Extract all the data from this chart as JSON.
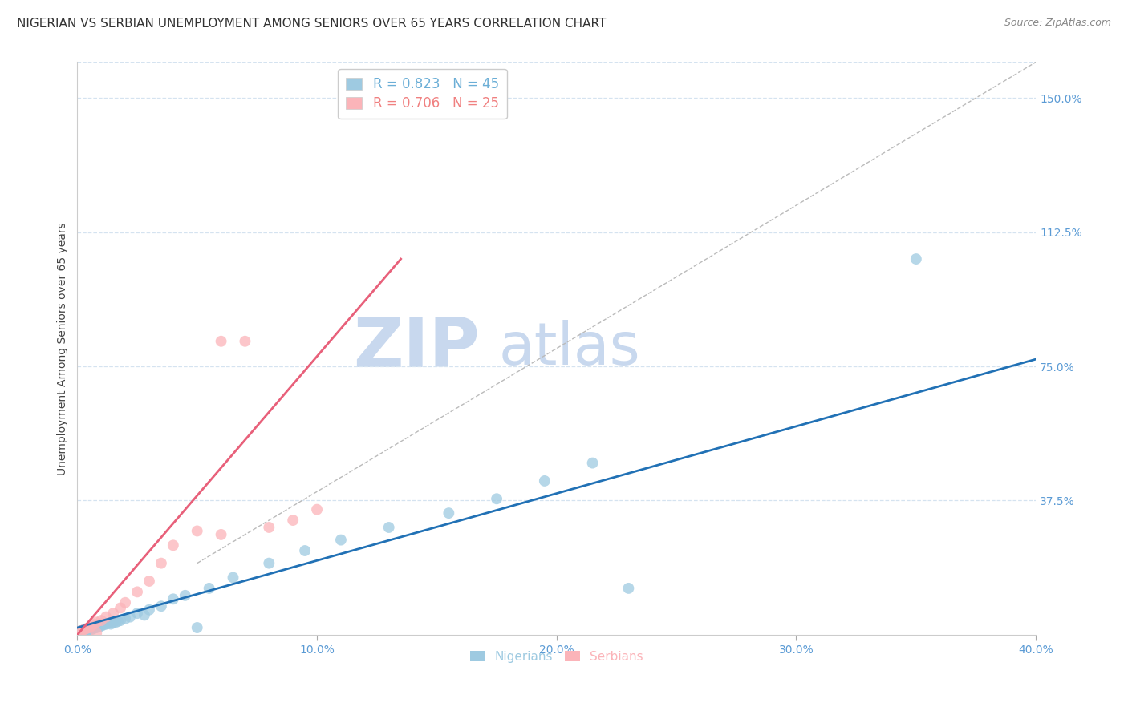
{
  "title": "NIGERIAN VS SERBIAN UNEMPLOYMENT AMONG SENIORS OVER 65 YEARS CORRELATION CHART",
  "source": "Source: ZipAtlas.com",
  "ylabel": "Unemployment Among Seniors over 65 years",
  "xlim": [
    0.0,
    0.4
  ],
  "ylim": [
    0.0,
    1.6
  ],
  "xticks": [
    0.0,
    0.1,
    0.2,
    0.3,
    0.4
  ],
  "xticklabels": [
    "0.0%",
    "10.0%",
    "20.0%",
    "30.0%",
    "40.0%"
  ],
  "yticks": [
    0.0,
    0.375,
    0.75,
    1.125,
    1.5
  ],
  "yticklabels": [
    "",
    "37.5%",
    "75.0%",
    "112.5%",
    "150.0%"
  ],
  "watermark_zip": "ZIP",
  "watermark_atlas": "atlas",
  "legend_entries": [
    {
      "label": "R = 0.823   N = 45",
      "color": "#6baed6"
    },
    {
      "label": "R = 0.706   N = 25",
      "color": "#f08080"
    }
  ],
  "nigerian_x": [
    0.001,
    0.002,
    0.003,
    0.003,
    0.004,
    0.005,
    0.005,
    0.006,
    0.006,
    0.007,
    0.007,
    0.008,
    0.008,
    0.009,
    0.01,
    0.01,
    0.011,
    0.012,
    0.013,
    0.014,
    0.015,
    0.016,
    0.017,
    0.018,
    0.02,
    0.022,
    0.025,
    0.028,
    0.03,
    0.035,
    0.04,
    0.045,
    0.055,
    0.065,
    0.08,
    0.095,
    0.11,
    0.13,
    0.155,
    0.175,
    0.195,
    0.215,
    0.05,
    0.35,
    0.23
  ],
  "nigerian_y": [
    0.01,
    0.01,
    0.012,
    0.015,
    0.012,
    0.015,
    0.02,
    0.015,
    0.02,
    0.018,
    0.022,
    0.02,
    0.025,
    0.022,
    0.025,
    0.03,
    0.028,
    0.03,
    0.032,
    0.03,
    0.035,
    0.035,
    0.038,
    0.04,
    0.045,
    0.05,
    0.06,
    0.055,
    0.07,
    0.08,
    0.1,
    0.11,
    0.13,
    0.16,
    0.2,
    0.235,
    0.265,
    0.3,
    0.34,
    0.38,
    0.43,
    0.48,
    0.02,
    1.05,
    0.13
  ],
  "serbian_x": [
    0.001,
    0.002,
    0.003,
    0.004,
    0.005,
    0.006,
    0.007,
    0.008,
    0.01,
    0.012,
    0.015,
    0.018,
    0.02,
    0.025,
    0.03,
    0.035,
    0.04,
    0.05,
    0.06,
    0.07,
    0.08,
    0.09,
    0.1,
    0.06,
    0.008
  ],
  "serbian_y": [
    0.01,
    0.012,
    0.015,
    0.018,
    0.02,
    0.025,
    0.03,
    0.035,
    0.04,
    0.05,
    0.06,
    0.075,
    0.09,
    0.12,
    0.15,
    0.2,
    0.25,
    0.29,
    0.82,
    0.82,
    0.3,
    0.32,
    0.35,
    0.28,
    0.005
  ],
  "blue_line_x": [
    0.0,
    0.4
  ],
  "blue_line_y": [
    0.02,
    0.77
  ],
  "pink_line_x": [
    0.0,
    0.135
  ],
  "pink_line_y": [
    0.0,
    1.05
  ],
  "diag_line_x": [
    0.05,
    0.4
  ],
  "diag_line_y": [
    0.2,
    1.6
  ],
  "nigerian_color": "#9ecae1",
  "serbian_color": "#fbb4b9",
  "blue_line_color": "#2171b5",
  "pink_line_color": "#e8607a",
  "diag_line_color": "#bbbbbb",
  "tick_color": "#5b9bd5",
  "background_color": "#ffffff",
  "grid_color": "#d5e3f0",
  "title_fontsize": 11,
  "source_fontsize": 9,
  "ylabel_fontsize": 10,
  "watermark_zip_color": "#c8d8ee",
  "watermark_atlas_color": "#c8d8ee",
  "watermark_fontsize": 62
}
